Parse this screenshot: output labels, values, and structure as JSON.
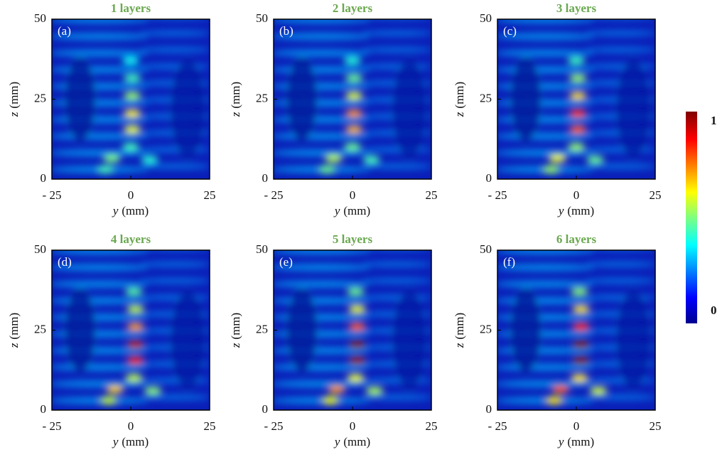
{
  "panels": [
    {
      "title": "1 layers",
      "letter": "(a)"
    },
    {
      "title": "2 layers",
      "letter": "(b)"
    },
    {
      "title": "3 layers",
      "letter": "(c)"
    },
    {
      "title": "4 layers",
      "letter": "(d)"
    },
    {
      "title": "5 layers",
      "letter": "(e)"
    },
    {
      "title": "6 layers",
      "letter": "(f)"
    }
  ],
  "axes": {
    "xlim": [
      -25,
      25
    ],
    "ylim": [
      0,
      50
    ],
    "xticks": [
      {
        "value": -25,
        "label": "- 25"
      },
      0,
      25
    ],
    "yticks": [
      0,
      25,
      50
    ],
    "xlabel": {
      "var": "y",
      "unit": "(mm)"
    },
    "ylabel": {
      "var": "z",
      "unit": "(mm)"
    }
  },
  "colorbar": {
    "max": 1,
    "min": 0
  }
}
